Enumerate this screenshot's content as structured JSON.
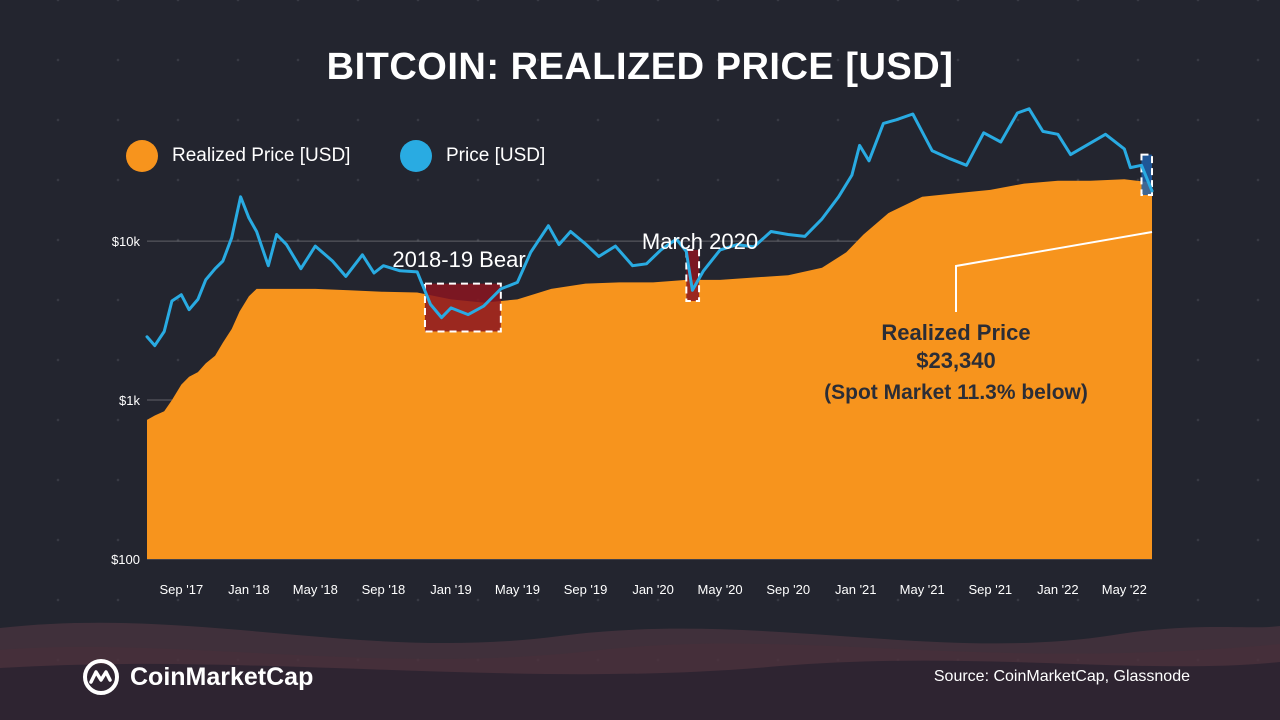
{
  "title": "BITCOIN: REALIZED PRICE [USD]",
  "legend": [
    {
      "label": "Realized Price [USD]",
      "color": "#f7941d"
    },
    {
      "label": "Price [USD]",
      "color": "#29abe2"
    }
  ],
  "footer": {
    "brand": "CoinMarketCap",
    "logo_icon": "coinmarketcap-logo-icon",
    "source": "Source: CoinMarketCap, Glassnode"
  },
  "annotations": {
    "bear": "2018-19 Bear",
    "march": "March 2020",
    "realized_label": "Realized Price",
    "realized_value": "$23,340",
    "spot_note": "(Spot Market 11.3% below)"
  },
  "chart_data": {
    "type": "area",
    "scale": "log",
    "title": "BITCOIN: REALIZED PRICE [USD]",
    "ylim": [
      100,
      50000
    ],
    "yticks": [
      {
        "value": 100,
        "label": "$100"
      },
      {
        "value": 1000,
        "label": "$1k"
      },
      {
        "value": 10000,
        "label": "$10k"
      }
    ],
    "xlim": [
      "2017-07-01",
      "2022-06-20"
    ],
    "xticks": [
      {
        "date": "2017-09-01",
        "label": "Sep '17"
      },
      {
        "date": "2018-01-01",
        "label": "Jan '18"
      },
      {
        "date": "2018-05-01",
        "label": "May '18"
      },
      {
        "date": "2018-09-01",
        "label": "Sep '18"
      },
      {
        "date": "2019-01-01",
        "label": "Jan '19"
      },
      {
        "date": "2019-05-01",
        "label": "May '19"
      },
      {
        "date": "2019-09-01",
        "label": "Sep '19"
      },
      {
        "date": "2020-01-01",
        "label": "Jan '20"
      },
      {
        "date": "2020-05-01",
        "label": "May '20"
      },
      {
        "date": "2020-09-01",
        "label": "Sep '20"
      },
      {
        "date": "2021-01-01",
        "label": "Jan '21"
      },
      {
        "date": "2021-05-01",
        "label": "May '21"
      },
      {
        "date": "2021-09-01",
        "label": "Sep '21"
      },
      {
        "date": "2022-01-01",
        "label": "Jan '22"
      },
      {
        "date": "2022-05-01",
        "label": "May '22"
      }
    ],
    "grid": true,
    "legend_position": "top-left",
    "series": [
      {
        "name": "Realized Price [USD]",
        "color": "#f7941d",
        "style": "area",
        "points": [
          [
            "2017-07-01",
            750
          ],
          [
            "2017-07-15",
            800
          ],
          [
            "2017-08-01",
            850
          ],
          [
            "2017-08-15",
            1000
          ],
          [
            "2017-09-01",
            1250
          ],
          [
            "2017-09-15",
            1400
          ],
          [
            "2017-10-01",
            1500
          ],
          [
            "2017-10-15",
            1700
          ],
          [
            "2017-11-01",
            1900
          ],
          [
            "2017-11-15",
            2300
          ],
          [
            "2017-12-01",
            2800
          ],
          [
            "2017-12-15",
            3600
          ],
          [
            "2018-01-01",
            4500
          ],
          [
            "2018-01-15",
            5000
          ],
          [
            "2018-02-01",
            5000
          ],
          [
            "2018-03-01",
            5000
          ],
          [
            "2018-05-01",
            5000
          ],
          [
            "2018-07-01",
            4900
          ],
          [
            "2018-09-01",
            4800
          ],
          [
            "2018-11-01",
            4750
          ],
          [
            "2019-01-01",
            4300
          ],
          [
            "2019-03-01",
            4100
          ],
          [
            "2019-05-01",
            4300
          ],
          [
            "2019-07-01",
            5000
          ],
          [
            "2019-09-01",
            5400
          ],
          [
            "2019-11-01",
            5500
          ],
          [
            "2020-01-01",
            5500
          ],
          [
            "2020-03-01",
            5700
          ],
          [
            "2020-05-01",
            5700
          ],
          [
            "2020-07-01",
            5900
          ],
          [
            "2020-09-01",
            6100
          ],
          [
            "2020-11-01",
            6800
          ],
          [
            "2020-12-15",
            8500
          ],
          [
            "2021-01-15",
            11000
          ],
          [
            "2021-03-01",
            15000
          ],
          [
            "2021-05-01",
            19000
          ],
          [
            "2021-07-01",
            20000
          ],
          [
            "2021-09-01",
            21000
          ],
          [
            "2021-11-01",
            23000
          ],
          [
            "2022-01-01",
            24000
          ],
          [
            "2022-03-01",
            24000
          ],
          [
            "2022-05-01",
            24500
          ],
          [
            "2022-06-20",
            23340
          ]
        ]
      },
      {
        "name": "Price [USD]",
        "color": "#29abe2",
        "style": "line",
        "points": [
          [
            "2017-07-01",
            2500
          ],
          [
            "2017-07-15",
            2200
          ],
          [
            "2017-08-01",
            2700
          ],
          [
            "2017-08-15",
            4200
          ],
          [
            "2017-09-01",
            4600
          ],
          [
            "2017-09-15",
            3700
          ],
          [
            "2017-10-01",
            4300
          ],
          [
            "2017-10-15",
            5700
          ],
          [
            "2017-11-01",
            6700
          ],
          [
            "2017-11-15",
            7500
          ],
          [
            "2017-12-01",
            10500
          ],
          [
            "2017-12-17",
            19000
          ],
          [
            "2018-01-01",
            14000
          ],
          [
            "2018-01-15",
            11500
          ],
          [
            "2018-02-05",
            7000
          ],
          [
            "2018-02-20",
            11000
          ],
          [
            "2018-03-10",
            9500
          ],
          [
            "2018-04-05",
            6700
          ],
          [
            "2018-05-01",
            9300
          ],
          [
            "2018-06-01",
            7500
          ],
          [
            "2018-06-25",
            6000
          ],
          [
            "2018-07-25",
            8200
          ],
          [
            "2018-08-15",
            6300
          ],
          [
            "2018-09-01",
            7000
          ],
          [
            "2018-10-01",
            6500
          ],
          [
            "2018-11-01",
            6400
          ],
          [
            "2018-11-25",
            4000
          ],
          [
            "2018-12-15",
            3300
          ],
          [
            "2019-01-01",
            3800
          ],
          [
            "2019-02-01",
            3450
          ],
          [
            "2019-03-01",
            3900
          ],
          [
            "2019-04-01",
            5000
          ],
          [
            "2019-05-01",
            5500
          ],
          [
            "2019-05-25",
            8500
          ],
          [
            "2019-06-26",
            12500
          ],
          [
            "2019-07-15",
            9500
          ],
          [
            "2019-08-05",
            11500
          ],
          [
            "2019-09-01",
            9600
          ],
          [
            "2019-09-25",
            8000
          ],
          [
            "2019-10-25",
            9300
          ],
          [
            "2019-11-25",
            7000
          ],
          [
            "2019-12-20",
            7200
          ],
          [
            "2020-01-15",
            8800
          ],
          [
            "2020-02-12",
            10300
          ],
          [
            "2020-03-01",
            8600
          ],
          [
            "2020-03-12",
            4900
          ],
          [
            "2020-04-01",
            6500
          ],
          [
            "2020-05-01",
            8800
          ],
          [
            "2020-06-01",
            9500
          ],
          [
            "2020-07-01",
            9200
          ],
          [
            "2020-08-01",
            11500
          ],
          [
            "2020-09-01",
            11000
          ],
          [
            "2020-10-01",
            10700
          ],
          [
            "2020-11-01",
            13800
          ],
          [
            "2020-12-01",
            19000
          ],
          [
            "2020-12-25",
            26000
          ],
          [
            "2021-01-08",
            40000
          ],
          [
            "2021-01-25",
            32000
          ],
          [
            "2021-02-20",
            55000
          ],
          [
            "2021-03-15",
            58000
          ],
          [
            "2021-04-14",
            63000
          ],
          [
            "2021-05-19",
            37000
          ],
          [
            "2021-06-20",
            33000
          ],
          [
            "2021-07-20",
            30000
          ],
          [
            "2021-08-20",
            48000
          ],
          [
            "2021-09-20",
            42000
          ],
          [
            "2021-10-20",
            64000
          ],
          [
            "2021-11-10",
            68000
          ],
          [
            "2021-12-05",
            49000
          ],
          [
            "2022-01-01",
            47000
          ],
          [
            "2022-01-24",
            35000
          ],
          [
            "2022-03-28",
            47000
          ],
          [
            "2022-05-01",
            38000
          ],
          [
            "2022-05-12",
            29000
          ],
          [
            "2022-06-01",
            30000
          ],
          [
            "2022-06-20",
            20700
          ]
        ]
      }
    ],
    "highlights": [
      {
        "label": "2018-19 Bear",
        "from": "2018-11-15",
        "to": "2019-04-01",
        "y_from": 2700,
        "y_to": 5400,
        "color": "#8b1520"
      },
      {
        "label": "March 2020",
        "from": "2020-03-01",
        "to": "2020-03-24",
        "y_from": 4200,
        "y_to": 8800,
        "color": "#8b1520"
      },
      {
        "label": "Realized Price $23,340",
        "from": "2022-06-01",
        "to": "2022-06-20",
        "y_from": 19500,
        "y_to": 35000,
        "color": "#1e5fa8"
      }
    ]
  }
}
